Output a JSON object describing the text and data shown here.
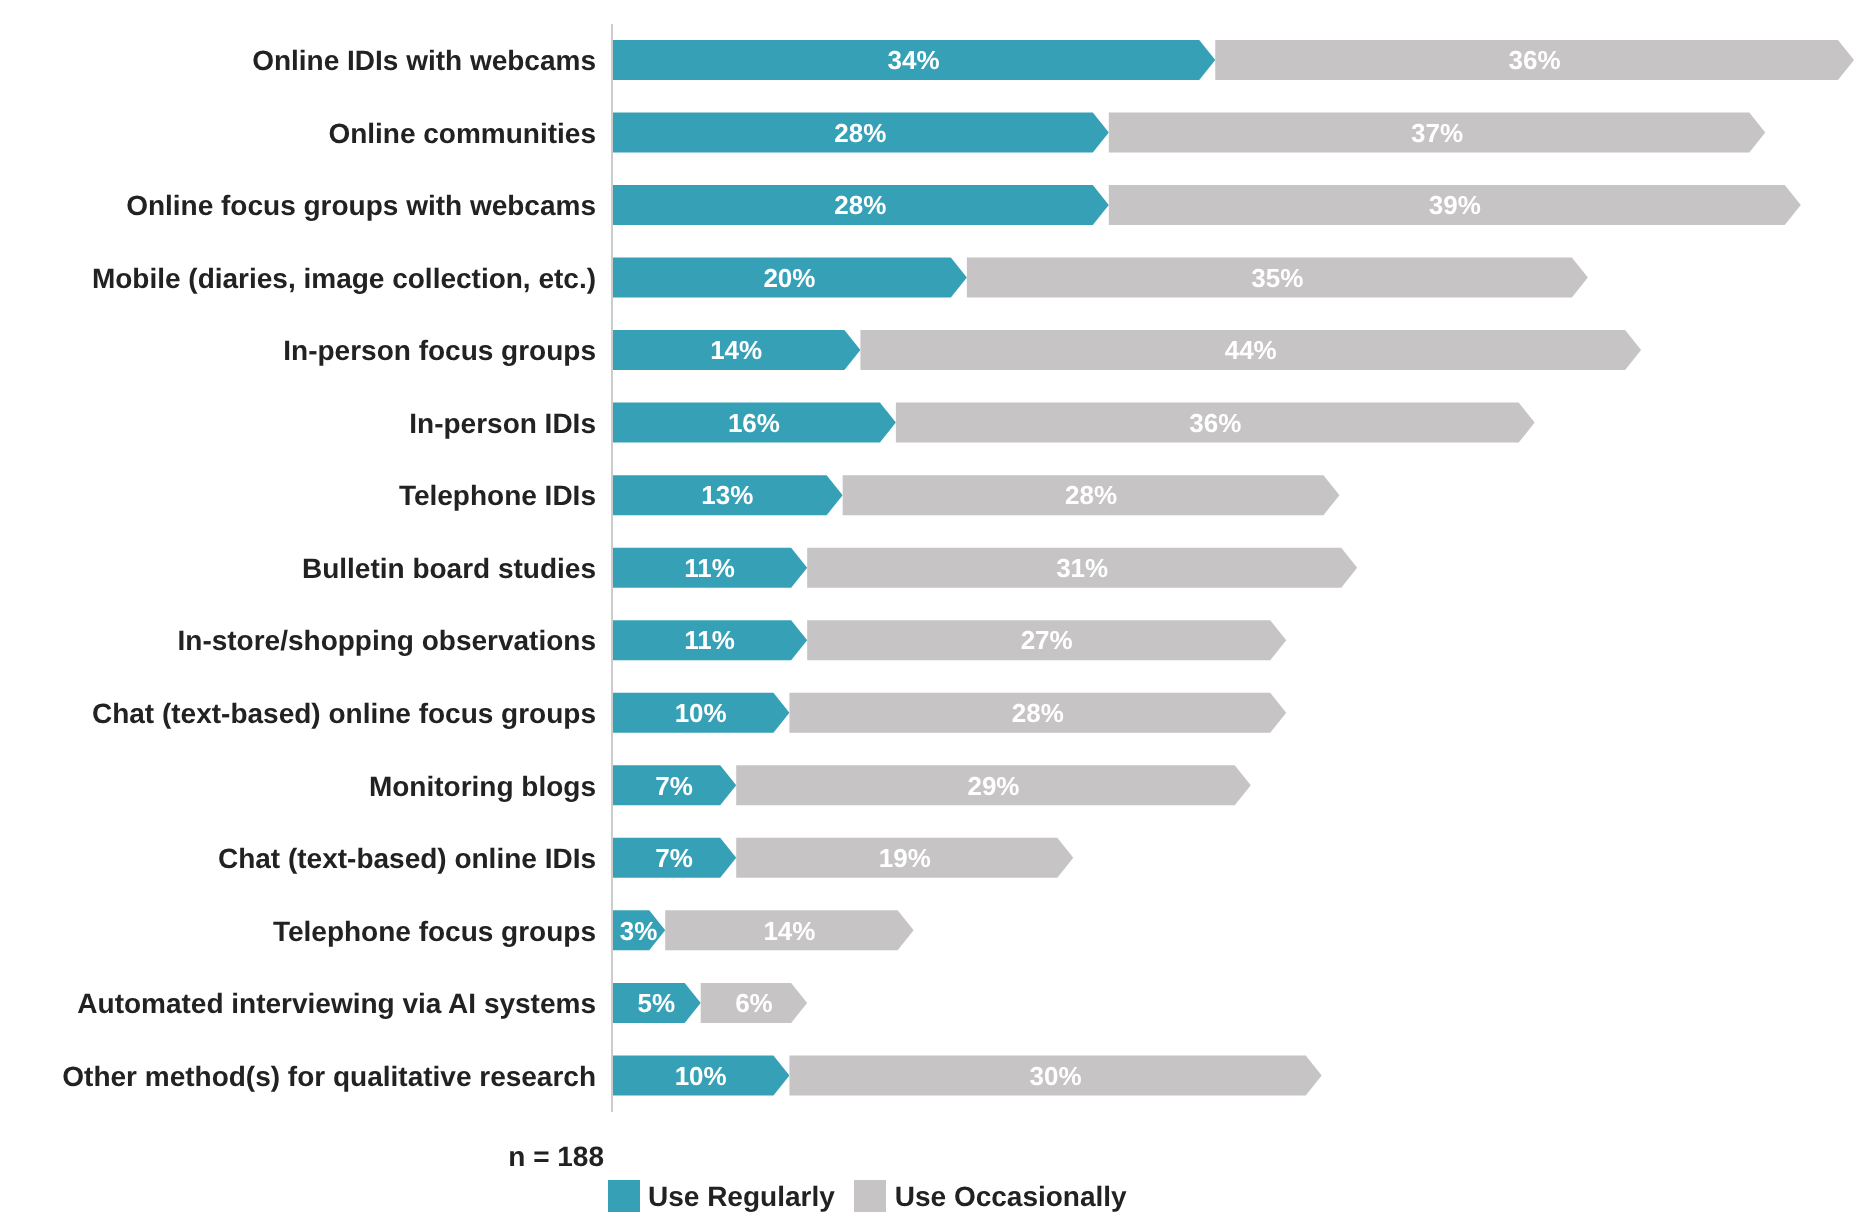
{
  "chart_data": {
    "type": "bar",
    "orientation": "horizontal",
    "stacked": true,
    "categories": [
      "Online IDIs with webcams",
      "Online communities",
      "Online focus groups with webcams",
      "Mobile (diaries, image collection, etc.)",
      "In-person focus groups",
      "In-person IDIs",
      "Telephone IDIs",
      "Bulletin board studies",
      "In-store/shopping observations",
      "Chat (text-based) online focus groups",
      "Monitoring blogs",
      "Chat (text-based) online IDIs",
      "Telephone focus groups",
      "Automated interviewing via AI systems",
      "Other method(s) for qualitative research"
    ],
    "series": [
      {
        "name": "Use Regularly",
        "color": "#36a1b6",
        "values": [
          34,
          28,
          28,
          20,
          14,
          16,
          13,
          11,
          11,
          10,
          7,
          7,
          3,
          5,
          10
        ],
        "value_labels": [
          "34%",
          "28%",
          "28%",
          "20%",
          "14%",
          "16%",
          "13%",
          "11%",
          "11%",
          "10%",
          "7%",
          "7%",
          "3%",
          "5%",
          "10%"
        ]
      },
      {
        "name": "Use Occasionally",
        "color": "#c6c4c5",
        "values": [
          36,
          37,
          39,
          35,
          44,
          36,
          28,
          31,
          27,
          28,
          29,
          19,
          14,
          6,
          30
        ],
        "value_labels": [
          "36%",
          "37%",
          "39%",
          "35%",
          "44%",
          "36%",
          "28%",
          "31%",
          "27%",
          "28%",
          "29%",
          "19%",
          "14%",
          "6%",
          "30%"
        ]
      }
    ],
    "annotations": [
      "n = 188"
    ],
    "legend": "bottom"
  }
}
